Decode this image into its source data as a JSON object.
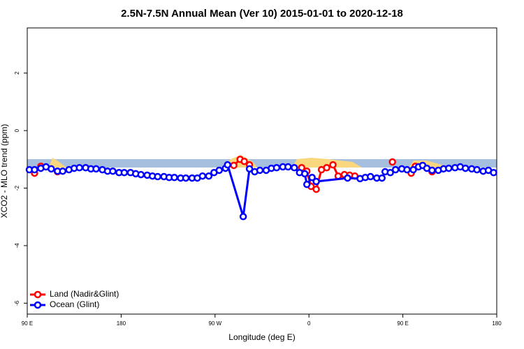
{
  "chart_data": {
    "type": "line",
    "title": "2.5N-7.5N Annual Mean (Ver 10)   2015-01-01 to 2020-12-18",
    "x_label": "Longitude (deg E)",
    "y_label": "XCO2 - MLO trend (ppm)",
    "xlim": [
      90,
      540
    ],
    "ylim": [
      -6.38,
      3.57
    ],
    "xticks": [
      {
        "value": 90,
        "label": "90 E"
      },
      180,
      {
        "value": 270,
        "label": "90 W"
      },
      {
        "value": 360,
        "label": "0"
      },
      {
        "value": 450,
        "label": "90 E"
      },
      {
        "value": 540,
        "label": "180"
      }
    ],
    "yticks": [
      -6,
      -4,
      -2,
      0,
      2
    ],
    "legend": "bottom-left",
    "series": [
      {
        "name": "Land (Nadir&Glint)",
        "color": "#ff0000",
        "x": [
          97,
          103,
          null,
          119,
          null,
          288,
          294,
          298,
          303,
          null,
          353,
          358,
          362,
          367,
          372,
          377,
          383,
          388,
          394,
          399,
          404,
          null,
          440,
          null,
          458,
          462,
          null,
          478
        ],
        "values": [
          -1.48,
          -1.24,
          null,
          -1.43,
          null,
          -1.21,
          -1.0,
          -1.07,
          -1.19,
          null,
          -1.29,
          -1.41,
          -1.94,
          -2.04,
          -1.36,
          -1.29,
          -1.19,
          -1.58,
          -1.53,
          -1.55,
          -1.58,
          null,
          -1.09,
          null,
          -1.48,
          -1.24,
          null,
          -1.43
        ]
      },
      {
        "name": "Ocean (Glint)",
        "color": "#0000ff",
        "x": [
          92,
          97,
          103,
          108,
          113,
          119,
          124,
          130,
          135,
          140,
          146,
          151,
          156,
          162,
          167,
          172,
          178,
          183,
          189,
          194,
          199,
          205,
          210,
          215,
          221,
          226,
          231,
          237,
          242,
          248,
          253,
          258,
          264,
          269,
          274,
          280,
          282,
          297,
          303,
          308,
          313,
          319,
          324,
          329,
          335,
          340,
          346,
          351,
          356,
          358,
          363,
          367,
          397,
          409,
          414,
          419,
          425,
          430,
          433,
          438,
          443,
          449,
          454,
          460,
          465,
          469,
          473,
          478,
          484,
          489,
          494,
          500,
          505,
          510,
          516,
          521,
          527,
          532,
          537
        ],
        "values": [
          -1.36,
          -1.36,
          -1.31,
          -1.26,
          -1.33,
          -1.41,
          -1.41,
          -1.36,
          -1.31,
          -1.29,
          -1.29,
          -1.33,
          -1.33,
          -1.36,
          -1.41,
          -1.41,
          -1.46,
          -1.46,
          -1.46,
          -1.5,
          -1.53,
          -1.55,
          -1.58,
          -1.6,
          -1.6,
          -1.63,
          -1.63,
          -1.65,
          -1.65,
          -1.65,
          -1.65,
          -1.58,
          -1.58,
          -1.46,
          -1.38,
          -1.31,
          -1.19,
          -2.99,
          -1.33,
          -1.43,
          -1.38,
          -1.38,
          -1.31,
          -1.29,
          -1.26,
          -1.26,
          -1.29,
          -1.46,
          -1.5,
          -1.87,
          -1.63,
          -1.77,
          -1.65,
          -1.67,
          -1.63,
          -1.6,
          -1.65,
          -1.65,
          -1.43,
          -1.46,
          -1.36,
          -1.33,
          -1.36,
          -1.36,
          -1.26,
          -1.21,
          -1.31,
          -1.38,
          -1.38,
          -1.33,
          -1.31,
          -1.29,
          -1.26,
          -1.31,
          -1.33,
          -1.36,
          -1.41,
          -1.38,
          -1.46
        ]
      }
    ]
  }
}
